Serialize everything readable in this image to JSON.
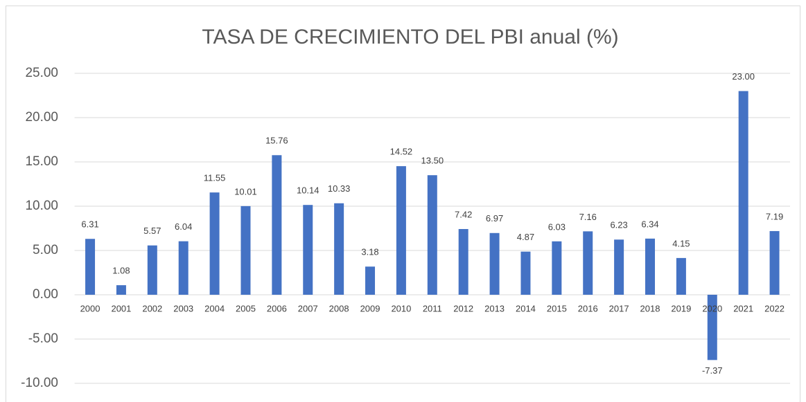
{
  "chart_data": {
    "type": "bar",
    "title": "TASA DE CRECIMIENTO DEL PBI anual (%)",
    "categories": [
      "2000",
      "2001",
      "2002",
      "2003",
      "2004",
      "2005",
      "2006",
      "2007",
      "2008",
      "2009",
      "2010",
      "2011",
      "2012",
      "2013",
      "2014",
      "2015",
      "2016",
      "2017",
      "2018",
      "2019",
      "2020",
      "2021",
      "2022"
    ],
    "values": [
      6.31,
      1.08,
      5.57,
      6.04,
      11.55,
      10.01,
      15.76,
      10.14,
      10.33,
      3.18,
      14.52,
      13.5,
      7.42,
      6.97,
      4.87,
      6.03,
      7.16,
      6.23,
      6.34,
      4.15,
      -7.37,
      23,
      7.19
    ],
    "value_labels": [
      "6.31",
      "1.08",
      "5.57",
      "6.04",
      "11.55",
      "10.01",
      "15.76",
      "10.14",
      "10.33",
      "3.18",
      "14.52",
      "13.50",
      "7.42",
      "6.97",
      "4.87",
      "6.03",
      "7.16",
      "6.23",
      "6.34",
      "4.15",
      "-7.37",
      "23.00",
      "7.19"
    ],
    "color": "#4472c4",
    "ylim": [
      -10,
      25
    ],
    "yticks": [
      {
        "value": -10,
        "label": "-10.00"
      },
      {
        "value": -5,
        "label": "-5.00"
      },
      {
        "value": 0,
        "label": "0.00"
      },
      {
        "value": 5,
        "label": "5.00"
      },
      {
        "value": 10,
        "label": "10.00"
      },
      {
        "value": 15,
        "label": "15.00"
      },
      {
        "value": 20,
        "label": "20.00"
      },
      {
        "value": 25,
        "label": "25.00"
      }
    ],
    "grid": true
  }
}
